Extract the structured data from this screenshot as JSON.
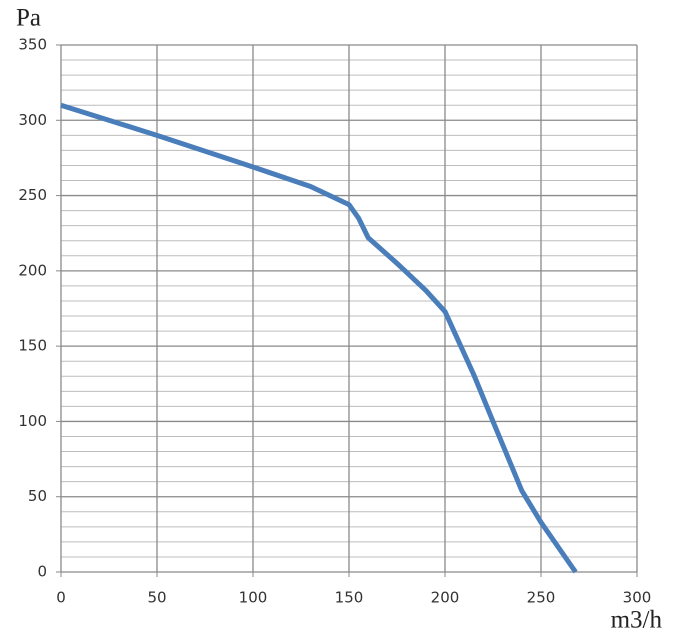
{
  "chart_data": {
    "type": "line",
    "y_label": "Pa",
    "x_label": "m3/h",
    "x": [
      0,
      50,
      100,
      130,
      150,
      155,
      160,
      175,
      190,
      200,
      205,
      215,
      225,
      240,
      250,
      268
    ],
    "series": [
      {
        "color": "#4a7ebb",
        "values": [
          310,
          290,
          269,
          256,
          244,
          235,
          222,
          205,
          187,
          173,
          159,
          131,
          100,
          54,
          33,
          0
        ]
      }
    ],
    "xlim": [
      0,
      300
    ],
    "xticks": [
      0,
      50,
      100,
      150,
      200,
      250,
      300
    ],
    "ylim": [
      0,
      350
    ],
    "yticks": [
      0,
      50,
      100,
      150,
      200,
      250,
      300,
      350
    ],
    "yminorticks": [
      10,
      20,
      30,
      40,
      60,
      70,
      80,
      90,
      110,
      120,
      130,
      140,
      160,
      170,
      180,
      190,
      210,
      220,
      230,
      240,
      260,
      270,
      280,
      290,
      310,
      320,
      330,
      340
    ],
    "grid": true
  }
}
